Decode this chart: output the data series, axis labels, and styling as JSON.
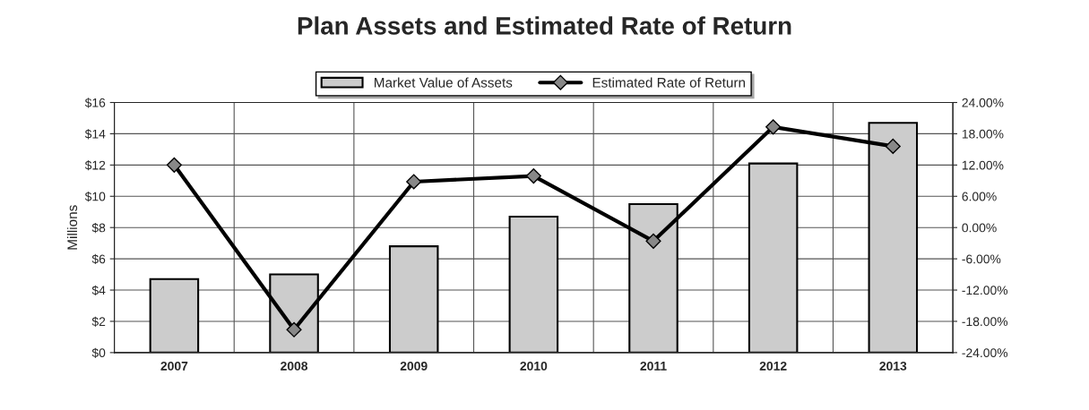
{
  "chart_data": {
    "type": "bar",
    "title": "Plan Assets and Estimated Rate of Return",
    "ylabel": "Millions",
    "categories": [
      "2007",
      "2008",
      "2009",
      "2010",
      "2011",
      "2012",
      "2013"
    ],
    "series": [
      {
        "name": "Market Value of Assets",
        "type": "bar",
        "color": "#cccccc",
        "values": [
          4.7,
          5.0,
          6.8,
          8.7,
          9.5,
          12.1,
          14.7
        ]
      },
      {
        "name": "Estimated Rate of Return",
        "type": "line",
        "axis": "y2",
        "color": "#000000",
        "marker": "diamond",
        "values": [
          12.0,
          -19.6,
          8.8,
          9.9,
          -2.6,
          19.3,
          15.6
        ]
      }
    ],
    "ylim": [
      0,
      16
    ],
    "yticks": [
      {
        "value": 0,
        "label": "$0"
      },
      {
        "value": 2,
        "label": "$2"
      },
      {
        "value": 4,
        "label": "$4"
      },
      {
        "value": 6,
        "label": "$6"
      },
      {
        "value": 8,
        "label": "$8"
      },
      {
        "value": 10,
        "label": "$10"
      },
      {
        "value": 12,
        "label": "$12"
      },
      {
        "value": 14,
        "label": "$14"
      },
      {
        "value": 16,
        "label": "$16"
      }
    ],
    "y2lim": [
      -24,
      24
    ],
    "y2ticks": [
      {
        "value": -24,
        "label": "-24.00%"
      },
      {
        "value": -18,
        "label": "-18.00%"
      },
      {
        "value": -12,
        "label": "-12.00%"
      },
      {
        "value": -6,
        "label": "-6.00%"
      },
      {
        "value": 0,
        "label": "0.00%"
      },
      {
        "value": 6,
        "label": "6.00%"
      },
      {
        "value": 12,
        "label": "12.00%"
      },
      {
        "value": 18,
        "label": "18.00%"
      },
      {
        "value": 24,
        "label": "24.00%"
      }
    ],
    "grid": true,
    "legend": "top"
  }
}
